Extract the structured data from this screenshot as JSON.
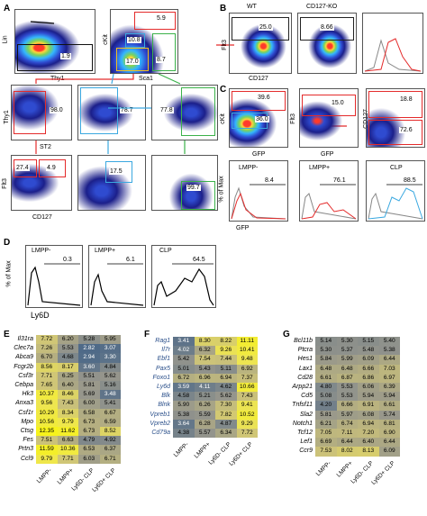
{
  "panels": {
    "a": "A",
    "b": "B",
    "c": "C",
    "d": "D",
    "e": "E",
    "f": "F",
    "g": "G"
  },
  "panel_a": {
    "lin_label": "Lin",
    "thy1_bottom": "Thy1",
    "ckit": "cKit",
    "sca1": "Sca1",
    "g_lin": "1.9",
    "g_59": "5.9",
    "g_108": "10.8",
    "g_87": "8.7",
    "g_170": "17.0",
    "thy1_left": "Thy1",
    "st2": "ST2",
    "g_980": "98.0",
    "g_787": "78.7",
    "g_778": "77.8",
    "flt3": "Flt3",
    "cd127": "CD127",
    "g_274": "27.4",
    "g_49": "4.9",
    "g_175": "17.5",
    "g_997": "99.7"
  },
  "panel_b": {
    "wt": "WT",
    "ko": "CD127-KO",
    "flt3": "Flt3",
    "cd127": "CD127",
    "g_wt": "25.0",
    "g_ko": "8.66"
  },
  "panel_c": {
    "ckit": "cKit",
    "gfp1": "GFP",
    "flt3": "Flt3",
    "gfp2": "GFP",
    "cd127": "CD127",
    "g_396": "39.6",
    "g_360": "36.0",
    "g_150": "15.0",
    "g_188": "18.8",
    "g_726": "72.6",
    "pct_max": "% of Max",
    "gfp3": "GFP",
    "h1": "LMPP-",
    "h1v": "8.4",
    "h2": "LMPP+",
    "h2v": "76.1",
    "h3": "CLP",
    "h3v": "88.5"
  },
  "panel_d": {
    "pct_max": "% of Max",
    "ly6d": "Ly6D",
    "h1": "LMPP-",
    "h1v": "0.3",
    "h2": "LMPP+",
    "h2v": "6.1",
    "h3": "CLP",
    "h3v": "64.5"
  },
  "heatmaps": {
    "columns": [
      "LMPP-",
      "LMPP+",
      "Ly6D- CLP",
      "Ly6D+ CLP"
    ],
    "E": {
      "genes": [
        "Il31ra",
        "Clec7a",
        "Abca9",
        "Fcgr2b",
        "Csf3r",
        "Cebpa",
        "Hk3",
        "Anxa3",
        "Csf1r",
        "Mpo",
        "Ctsg",
        "Fes",
        "Prtn3",
        "Ccl9"
      ],
      "values": [
        [
          7.72,
          6.2,
          5.28,
          5.95
        ],
        [
          7.26,
          5.53,
          2.82,
          3.07
        ],
        [
          6.7,
          4.68,
          2.94,
          3.3
        ],
        [
          8.56,
          8.17,
          3.6,
          4.84
        ],
        [
          7.71,
          6.25,
          5.51,
          5.62
        ],
        [
          7.65,
          6.4,
          5.81,
          5.16
        ],
        [
          10.37,
          8.46,
          5.69,
          3.48
        ],
        [
          9.56,
          7.43,
          6.0,
          5.41
        ],
        [
          10.29,
          8.34,
          6.58,
          6.67
        ],
        [
          10.56,
          9.79,
          6.73,
          6.59
        ],
        [
          12.35,
          11.62,
          6.73,
          8.52
        ],
        [
          7.51,
          6.63,
          4.79,
          4.92
        ],
        [
          11.59,
          10.36,
          6.53,
          6.37
        ],
        [
          9.79,
          7.71,
          6.03,
          6.71
        ]
      ]
    },
    "F": {
      "genes": [
        "Rag1",
        "Il7r",
        "Ebf1",
        "Pax5",
        "Foxo1",
        "Ly6d",
        "Blk",
        "Blnk",
        "Vpreb1",
        "Vpreb2",
        "Cd79a"
      ],
      "values": [
        [
          3.41,
          8.3,
          8.22,
          11.11
        ],
        [
          4.02,
          6.32,
          9.26,
          10.41
        ],
        [
          5.42,
          7.54,
          7.44,
          9.48
        ],
        [
          5.01,
          5.43,
          5.11,
          6.92
        ],
        [
          6.72,
          6.96,
          6.94,
          7.37
        ],
        [
          3.59,
          4.11,
          4.62,
          10.66
        ],
        [
          4.58,
          5.21,
          5.62,
          7.43
        ],
        [
          5.9,
          6.26,
          7.3,
          9.41
        ],
        [
          5.38,
          5.59,
          7.82,
          10.52
        ],
        [
          3.64,
          6.28,
          4.87,
          9.29
        ],
        [
          4.38,
          5.57,
          6.34,
          7.72
        ]
      ]
    },
    "G": {
      "genes": [
        "Bcl11b",
        "Ptcra",
        "Hes1",
        "Lax1",
        "Cd28",
        "Arpp21",
        "Cd5",
        "Tnfsf11",
        "Sla2",
        "Notch1",
        "Tcf12",
        "Lef1",
        "Ccr9"
      ],
      "values": [
        [
          5.14,
          5.3,
          5.15,
          5.4
        ],
        [
          5.3,
          5.37,
          5.48,
          5.38
        ],
        [
          5.84,
          5.99,
          6.09,
          6.44
        ],
        [
          6.48,
          6.48,
          6.66,
          7.03
        ],
        [
          6.61,
          6.87,
          6.86,
          6.97
        ],
        [
          4.8,
          5.53,
          6.06,
          6.39
        ],
        [
          5.08,
          5.53,
          5.94,
          5.94
        ],
        [
          4.2,
          6.66,
          6.91,
          6.61
        ],
        [
          5.81,
          5.97,
          6.08,
          5.74
        ],
        [
          6.21,
          6.74,
          6.94,
          6.81
        ],
        [
          7.05,
          7.11,
          7.2,
          6.9
        ],
        [
          6.69,
          6.44,
          6.4,
          6.44
        ],
        [
          7.53,
          8.02,
          8.13,
          6.09
        ]
      ]
    }
  },
  "colors": {
    "red": "#e42b2b",
    "blue": "#3aa8e0",
    "green": "#3bb24a",
    "yellow": "#f6f21a",
    "slate": "#4f6a88"
  }
}
